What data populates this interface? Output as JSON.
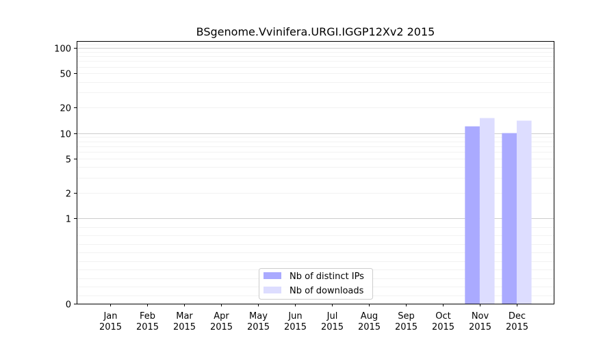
{
  "chart_data": {
    "type": "bar",
    "title": "BSgenome.Vvinifera.URGI.IGGP12Xv2 2015",
    "xlabel": "",
    "ylabel": "",
    "yscale": "symlog",
    "ylim": [
      0,
      120
    ],
    "yticks": [
      0,
      1,
      2,
      5,
      10,
      20,
      50,
      100
    ],
    "categories": [
      [
        "Jan",
        "2015"
      ],
      [
        "Feb",
        "2015"
      ],
      [
        "Mar",
        "2015"
      ],
      [
        "Apr",
        "2015"
      ],
      [
        "May",
        "2015"
      ],
      [
        "Jun",
        "2015"
      ],
      [
        "Jul",
        "2015"
      ],
      [
        "Aug",
        "2015"
      ],
      [
        "Sep",
        "2015"
      ],
      [
        "Oct",
        "2015"
      ],
      [
        "Nov",
        "2015"
      ],
      [
        "Dec",
        "2015"
      ]
    ],
    "series": [
      {
        "name": "Nb of distinct IPs",
        "color": "#aaaaff",
        "values": [
          0,
          0,
          0,
          0,
          0,
          0,
          0,
          0,
          0,
          0,
          12,
          10
        ]
      },
      {
        "name": "Nb of downloads",
        "color": "#ddddff",
        "values": [
          0,
          0,
          0,
          0,
          0,
          0,
          0,
          0,
          0,
          0,
          15,
          14
        ]
      }
    ],
    "grid": true,
    "legend_position": "bottom-center"
  }
}
